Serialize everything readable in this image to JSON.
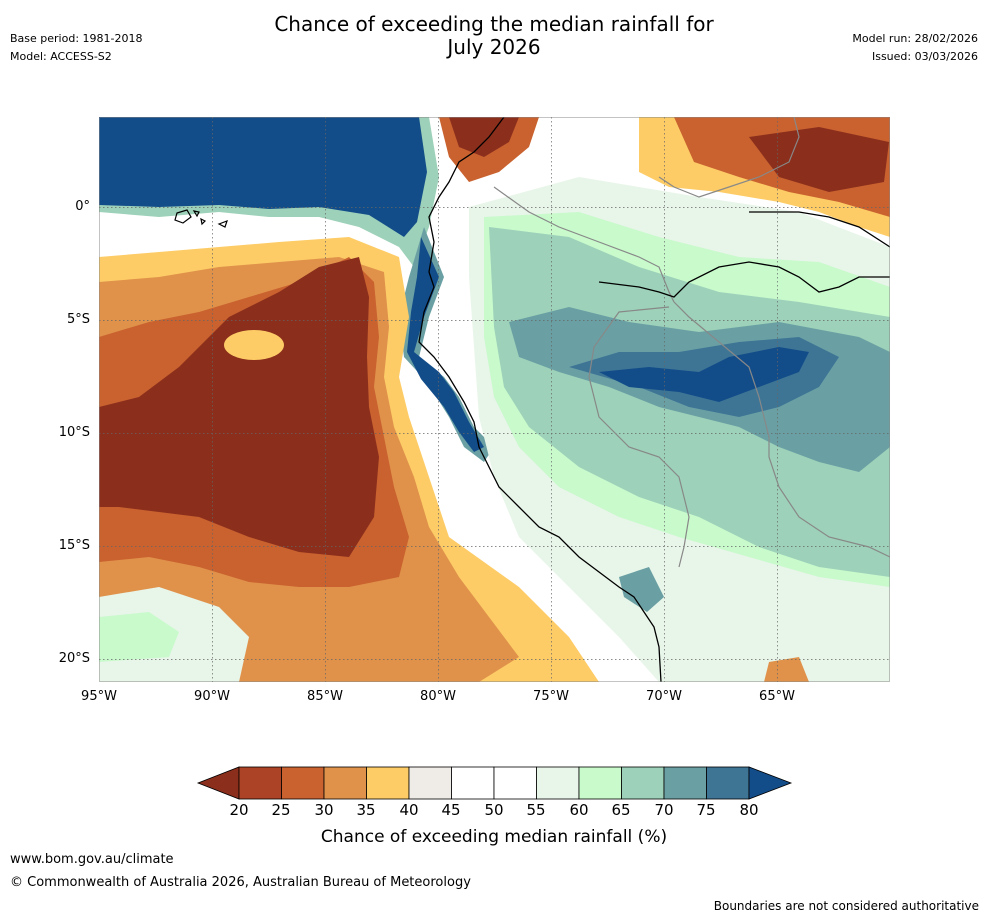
{
  "header": {
    "title_line1": "Chance of exceeding the median rainfall for",
    "title_line2": "July 2026",
    "base_period": "Base period: 1981-2018",
    "model": "Model: ACCESS-S2",
    "model_run": "Model run: 28/02/2026",
    "issued": "Issued: 03/03/2026"
  },
  "axes": {
    "lat_labels": [
      "0°",
      "5°S",
      "10°S",
      "15°S",
      "20°S"
    ],
    "lon_labels": [
      "95°W",
      "90°W",
      "85°W",
      "80°W",
      "75°W",
      "70°W",
      "65°W"
    ]
  },
  "colorbar": {
    "label": "Chance of exceeding median rainfall (%)",
    "ticks": [
      "20",
      "25",
      "30",
      "35",
      "40",
      "45",
      "50",
      "55",
      "60",
      "65",
      "70",
      "75",
      "80"
    ],
    "colors": [
      "#8b2e1c",
      "#ad4326",
      "#c9622f",
      "#e0924b",
      "#fdcc66",
      "#efebe7",
      "#ffffff",
      "#ffffff",
      "#e8f5e9",
      "#c8facc",
      "#9dd1b9",
      "#6aa0a4",
      "#3e7595",
      "#134d89"
    ]
  },
  "footer": {
    "website": "www.bom.gov.au/climate",
    "copyright": "© Commonwealth of Australia 2026, Australian Bureau of Meteorology",
    "disclaimer": "Boundaries are not considered authoritative"
  }
}
